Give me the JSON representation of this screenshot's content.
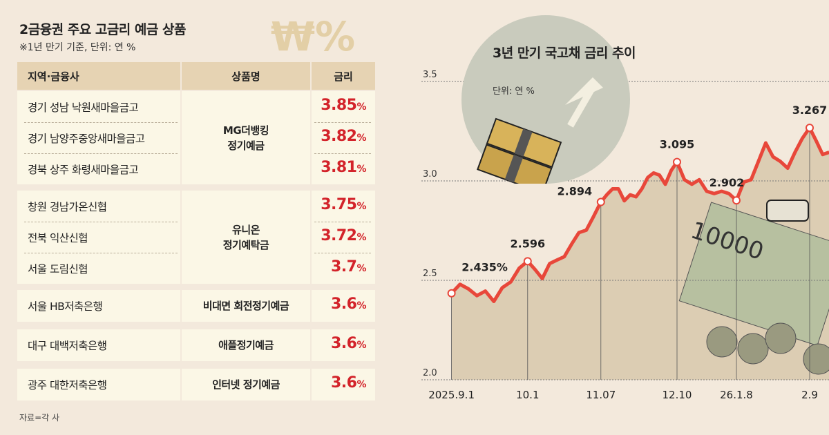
{
  "table": {
    "title": "2금융권 주요 고금리 예금 상품",
    "subtitle": "※1년 만기 기준, 단위: 연 %",
    "headers": [
      "지역·금융사",
      "상품명",
      "금리"
    ],
    "groups": [
      {
        "product": [
          "MG더뱅킹",
          "정기예금"
        ],
        "rows": [
          {
            "institution": "경기 성남 낙원새마을금고",
            "rate": "3.85"
          },
          {
            "institution": "경기 남양주중앙새마을금고",
            "rate": "3.82"
          },
          {
            "institution": "경북 상주 화령새마을금고",
            "rate": "3.81"
          }
        ]
      },
      {
        "product": [
          "유니온",
          "정기예탁금"
        ],
        "rows": [
          {
            "institution": "창원 경남가온신협",
            "rate": "3.75"
          },
          {
            "institution": "전북 익산신협",
            "rate": "3.72"
          },
          {
            "institution": "서울 도림신협",
            "rate": "3.7"
          }
        ]
      },
      {
        "product": [
          "비대면 회전정기예금"
        ],
        "rows": [
          {
            "institution": "서울 HB저축은행",
            "rate": "3.6"
          }
        ]
      },
      {
        "product": [
          "애플정기예금"
        ],
        "rows": [
          {
            "institution": "대구 대백저축은행",
            "rate": "3.6"
          }
        ]
      },
      {
        "product": [
          "인터넷 정기예금"
        ],
        "rows": [
          {
            "institution": "광주 대한저축은행",
            "rate": "3.6"
          }
        ]
      }
    ],
    "rate_unit": "%",
    "source": "자료=각 사",
    "rate_color": "#d3232a",
    "decor_symbol": "₩%"
  },
  "chart_data": {
    "type": "area",
    "title": "3년 만기 국고채 금리 추이",
    "unit_label": "단위: 연 %",
    "ylim": [
      2.0,
      3.5
    ],
    "yticks": [
      "2.0",
      "2.5",
      "3.0",
      "3.5"
    ],
    "grid": true,
    "line_color": "#e8473a",
    "fill_color": "#dccdb3",
    "xticks": [
      {
        "index": 0,
        "label": "2025.9.1"
      },
      {
        "index": 9,
        "label": "10.1"
      },
      {
        "index": 19,
        "label": "11.07"
      },
      {
        "index": 32,
        "label": "12.10"
      },
      {
        "index": 40,
        "label": "26.1.8"
      },
      {
        "index": 50,
        "label": "2.9"
      }
    ],
    "values": [
      2.435,
      2.48,
      2.457,
      2.423,
      2.446,
      2.394,
      2.463,
      2.492,
      2.561,
      2.596,
      2.555,
      2.509,
      2.584,
      2.602,
      2.619,
      2.682,
      2.74,
      2.752,
      2.821,
      2.894,
      2.93,
      2.96,
      2.96,
      2.9,
      2.93,
      2.92,
      2.96,
      3.017,
      3.04,
      3.029,
      2.983,
      3.052,
      3.095,
      3.006,
      2.983,
      3.006,
      2.948,
      2.936,
      2.948,
      2.936,
      2.902,
      2.994,
      3.006,
      3.098,
      3.191,
      3.121,
      3.098,
      3.064,
      3.144,
      3.214,
      3.267,
      3.202,
      3.133,
      3.144
    ],
    "annotations": [
      {
        "index": 0,
        "label": "2.435%"
      },
      {
        "index": 9,
        "label": "2.596"
      },
      {
        "index": 19,
        "label": "2.894"
      },
      {
        "index": 32,
        "label": "3.095"
      },
      {
        "index": 40,
        "label": "2.902"
      },
      {
        "index": 50,
        "label": "3.267"
      }
    ]
  }
}
